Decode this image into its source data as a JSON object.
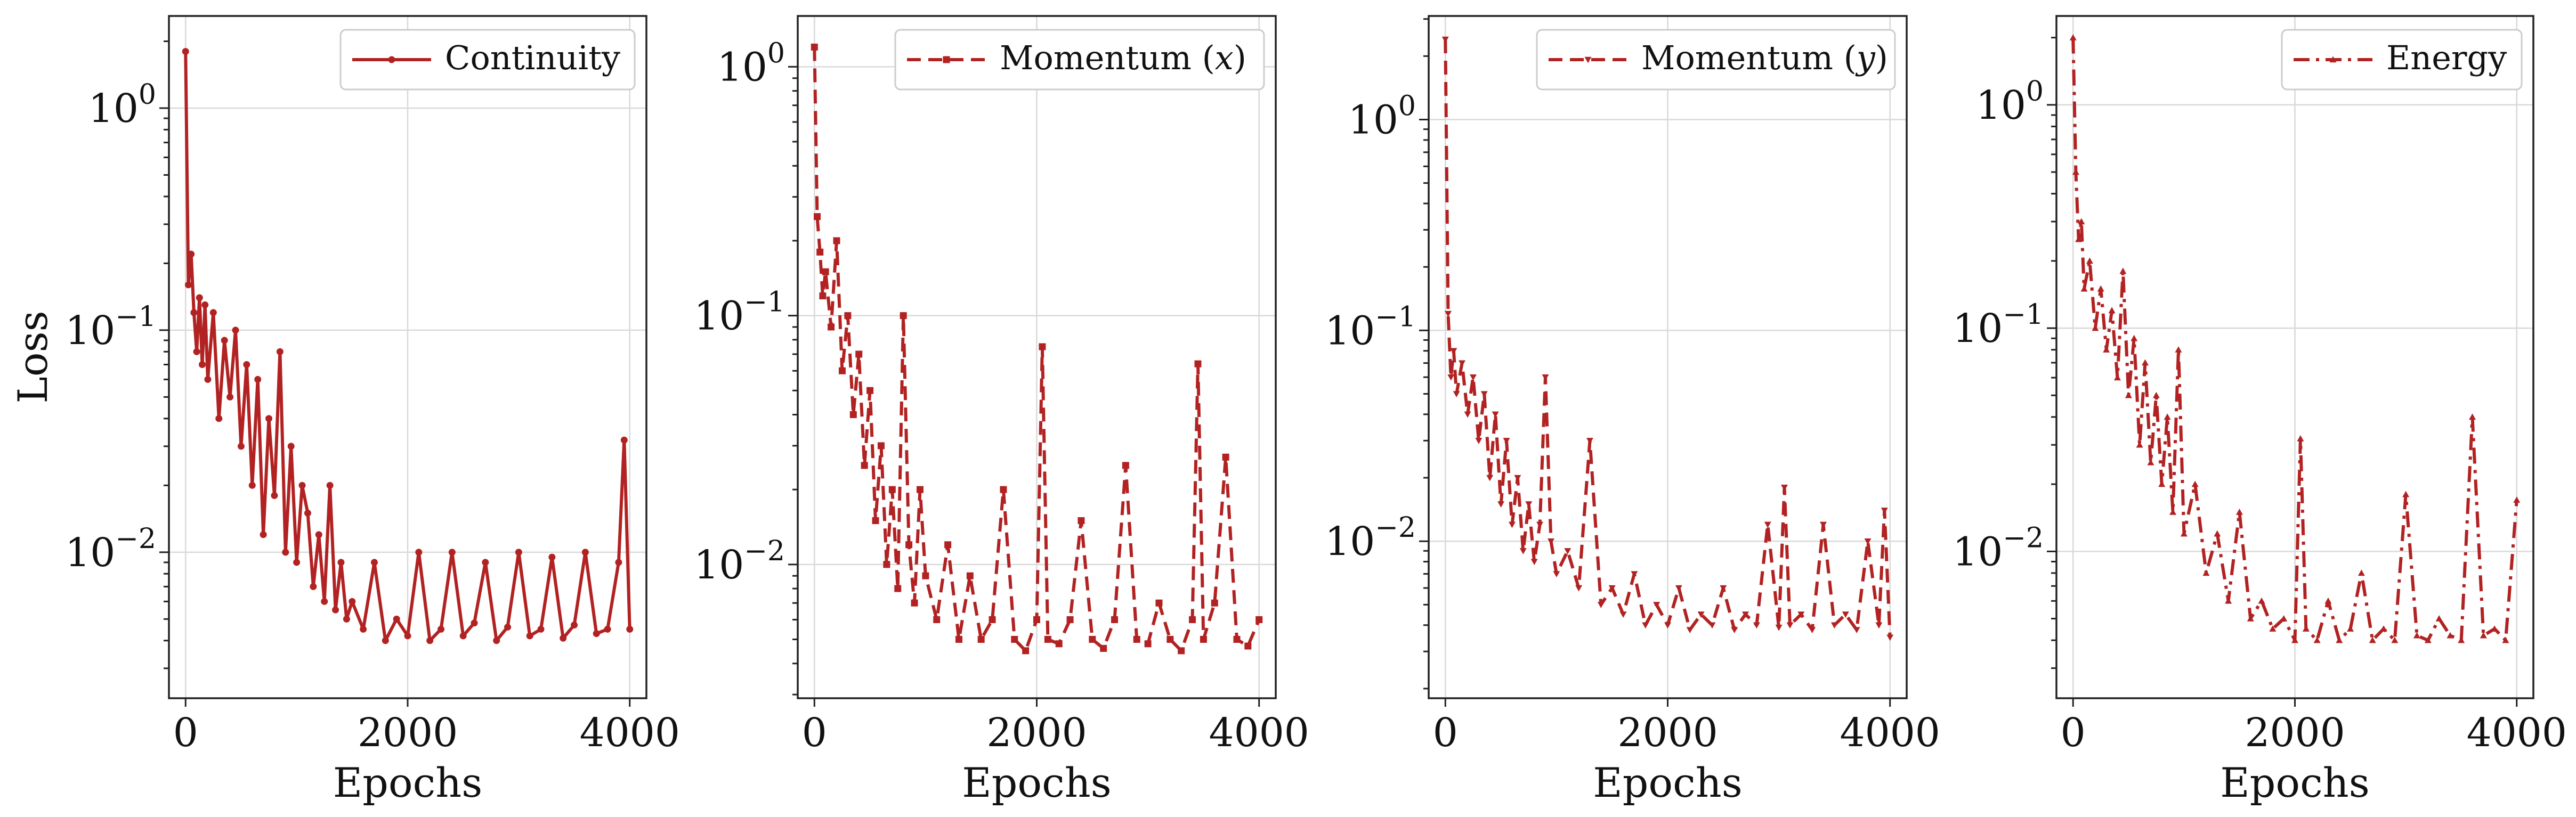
{
  "chart_data": [
    {
      "type": "line",
      "xlabel": "Epochs",
      "ylabel": "Loss",
      "yscale": "log",
      "xlim": [
        -150,
        4150
      ],
      "ylim": [
        0.0022,
        2.6
      ],
      "xticks": [
        {
          "value": 0,
          "label": "0"
        },
        {
          "value": 2000,
          "label": "2000"
        },
        {
          "value": 4000,
          "label": "4000"
        }
      ],
      "yticks": [
        {
          "value": 0.01,
          "base": "10",
          "exp": "−2"
        },
        {
          "value": 0.1,
          "base": "10",
          "exp": "−1"
        },
        {
          "value": 1,
          "base": "10",
          "exp": "0"
        }
      ],
      "grid": true,
      "legend_position": "top-right",
      "series": [
        {
          "name": "Continuity",
          "color": "#b22222",
          "line_style": "solid",
          "marker": "circle",
          "x": [
            0,
            25,
            50,
            75,
            100,
            125,
            150,
            175,
            200,
            250,
            300,
            350,
            400,
            450,
            500,
            550,
            600,
            650,
            700,
            750,
            800,
            850,
            900,
            950,
            1000,
            1050,
            1100,
            1150,
            1200,
            1250,
            1300,
            1350,
            1400,
            1450,
            1500,
            1600,
            1700,
            1800,
            1900,
            2000,
            2100,
            2200,
            2300,
            2400,
            2500,
            2600,
            2700,
            2800,
            2900,
            3000,
            3100,
            3200,
            3300,
            3400,
            3500,
            3600,
            3700,
            3800,
            3900,
            3950,
            4000
          ],
          "y": [
            1.8,
            0.16,
            0.22,
            0.12,
            0.08,
            0.14,
            0.07,
            0.13,
            0.06,
            0.12,
            0.04,
            0.09,
            0.05,
            0.1,
            0.03,
            0.07,
            0.02,
            0.06,
            0.012,
            0.04,
            0.018,
            0.08,
            0.01,
            0.03,
            0.009,
            0.02,
            0.015,
            0.007,
            0.012,
            0.006,
            0.02,
            0.0055,
            0.009,
            0.005,
            0.006,
            0.0045,
            0.009,
            0.004,
            0.005,
            0.0042,
            0.01,
            0.004,
            0.0045,
            0.01,
            0.0042,
            0.0048,
            0.009,
            0.004,
            0.0046,
            0.01,
            0.0042,
            0.0045,
            0.0095,
            0.0041,
            0.0047,
            0.01,
            0.0043,
            0.0045,
            0.009,
            0.032,
            0.0045
          ]
        }
      ]
    },
    {
      "type": "line",
      "xlabel": "Epochs",
      "ylabel": "",
      "yscale": "log",
      "xlim": [
        -150,
        4150
      ],
      "ylim": [
        0.0029,
        1.6
      ],
      "xticks": [
        {
          "value": 0,
          "label": "0"
        },
        {
          "value": 2000,
          "label": "2000"
        },
        {
          "value": 4000,
          "label": "4000"
        }
      ],
      "yticks": [
        {
          "value": 0.01,
          "base": "10",
          "exp": "−2"
        },
        {
          "value": 0.1,
          "base": "10",
          "exp": "−1"
        },
        {
          "value": 1,
          "base": "10",
          "exp": "0"
        }
      ],
      "grid": true,
      "legend_position": "top-right",
      "series": [
        {
          "name": "Momentum (x)",
          "name_base": "Momentum (",
          "name_var": "x",
          "name_tail": ")",
          "color": "#b22222",
          "line_style": "dashed",
          "marker": "square",
          "x": [
            0,
            25,
            50,
            75,
            100,
            150,
            200,
            250,
            300,
            350,
            400,
            450,
            500,
            550,
            600,
            650,
            700,
            750,
            800,
            850,
            900,
            950,
            1000,
            1100,
            1200,
            1300,
            1400,
            1500,
            1600,
            1700,
            1800,
            1900,
            2000,
            2050,
            2100,
            2200,
            2300,
            2400,
            2500,
            2600,
            2700,
            2800,
            2900,
            3000,
            3100,
            3200,
            3300,
            3400,
            3450,
            3500,
            3600,
            3700,
            3800,
            3900,
            4000
          ],
          "y": [
            1.2,
            0.25,
            0.18,
            0.12,
            0.15,
            0.09,
            0.2,
            0.06,
            0.1,
            0.04,
            0.07,
            0.025,
            0.05,
            0.015,
            0.03,
            0.01,
            0.02,
            0.008,
            0.1,
            0.012,
            0.007,
            0.02,
            0.009,
            0.006,
            0.012,
            0.005,
            0.009,
            0.005,
            0.006,
            0.02,
            0.005,
            0.0045,
            0.006,
            0.075,
            0.005,
            0.0048,
            0.006,
            0.015,
            0.005,
            0.0046,
            0.006,
            0.025,
            0.005,
            0.0048,
            0.007,
            0.005,
            0.0045,
            0.006,
            0.064,
            0.005,
            0.007,
            0.027,
            0.005,
            0.0047,
            0.006
          ]
        }
      ]
    },
    {
      "type": "line",
      "xlabel": "Epochs",
      "ylabel": "",
      "yscale": "log",
      "xlim": [
        -150,
        4150
      ],
      "ylim": [
        0.0018,
        3.1
      ],
      "xticks": [
        {
          "value": 0,
          "label": "0"
        },
        {
          "value": 2000,
          "label": "2000"
        },
        {
          "value": 4000,
          "label": "4000"
        }
      ],
      "yticks": [
        {
          "value": 0.01,
          "base": "10",
          "exp": "−2"
        },
        {
          "value": 0.1,
          "base": "10",
          "exp": "−1"
        },
        {
          "value": 1,
          "base": "10",
          "exp": "0"
        }
      ],
      "grid": true,
      "legend_position": "top-right",
      "series": [
        {
          "name": "Momentum (y)",
          "name_base": "Momentum (",
          "name_var": "y",
          "name_tail": ")",
          "color": "#b22222",
          "line_style": "dashed",
          "marker": "inverted-triangle",
          "x": [
            0,
            25,
            50,
            75,
            100,
            150,
            200,
            250,
            300,
            350,
            400,
            450,
            500,
            550,
            600,
            650,
            700,
            750,
            800,
            850,
            900,
            950,
            1000,
            1100,
            1200,
            1300,
            1400,
            1500,
            1600,
            1700,
            1800,
            1900,
            2000,
            2100,
            2200,
            2300,
            2400,
            2500,
            2600,
            2700,
            2800,
            2900,
            3000,
            3050,
            3100,
            3200,
            3300,
            3400,
            3500,
            3600,
            3700,
            3800,
            3900,
            3950,
            4000
          ],
          "y": [
            2.4,
            0.12,
            0.06,
            0.08,
            0.05,
            0.07,
            0.04,
            0.06,
            0.03,
            0.05,
            0.02,
            0.04,
            0.015,
            0.03,
            0.012,
            0.02,
            0.009,
            0.015,
            0.008,
            0.012,
            0.06,
            0.01,
            0.007,
            0.009,
            0.006,
            0.03,
            0.005,
            0.006,
            0.0045,
            0.007,
            0.004,
            0.005,
            0.004,
            0.006,
            0.0038,
            0.0045,
            0.004,
            0.006,
            0.0038,
            0.0045,
            0.004,
            0.012,
            0.0039,
            0.018,
            0.004,
            0.0045,
            0.0038,
            0.012,
            0.004,
            0.0045,
            0.0038,
            0.01,
            0.004,
            0.014,
            0.0035
          ]
        }
      ]
    },
    {
      "type": "line",
      "xlabel": "Epochs",
      "ylabel": "",
      "yscale": "log",
      "xlim": [
        -150,
        4150
      ],
      "ylim": [
        0.0022,
        2.5
      ],
      "xticks": [
        {
          "value": 0,
          "label": "0"
        },
        {
          "value": 2000,
          "label": "2000"
        },
        {
          "value": 4000,
          "label": "4000"
        }
      ],
      "yticks": [
        {
          "value": 0.01,
          "base": "10",
          "exp": "−2"
        },
        {
          "value": 0.1,
          "base": "10",
          "exp": "−1"
        },
        {
          "value": 1,
          "base": "10",
          "exp": "0"
        }
      ],
      "grid": true,
      "legend_position": "top-right",
      "series": [
        {
          "name": "Energy",
          "color": "#b22222",
          "line_style": "dashdot",
          "marker": "triangle",
          "x": [
            0,
            25,
            50,
            75,
            100,
            150,
            200,
            250,
            300,
            350,
            400,
            450,
            500,
            550,
            600,
            650,
            700,
            750,
            800,
            850,
            900,
            950,
            1000,
            1100,
            1200,
            1300,
            1400,
            1500,
            1600,
            1700,
            1800,
            1900,
            2000,
            2050,
            2100,
            2200,
            2300,
            2400,
            2500,
            2600,
            2700,
            2800,
            2900,
            3000,
            3100,
            3200,
            3300,
            3400,
            3500,
            3600,
            3700,
            3800,
            3900,
            4000
          ],
          "y": [
            2.0,
            0.5,
            0.25,
            0.3,
            0.15,
            0.2,
            0.1,
            0.15,
            0.08,
            0.12,
            0.06,
            0.18,
            0.05,
            0.09,
            0.03,
            0.07,
            0.025,
            0.05,
            0.02,
            0.04,
            0.015,
            0.08,
            0.012,
            0.02,
            0.008,
            0.012,
            0.006,
            0.015,
            0.005,
            0.006,
            0.0045,
            0.005,
            0.004,
            0.032,
            0.0045,
            0.004,
            0.006,
            0.004,
            0.0045,
            0.008,
            0.004,
            0.0045,
            0.004,
            0.018,
            0.0042,
            0.004,
            0.005,
            0.0042,
            0.004,
            0.04,
            0.0042,
            0.0045,
            0.004,
            0.017
          ]
        }
      ]
    }
  ]
}
